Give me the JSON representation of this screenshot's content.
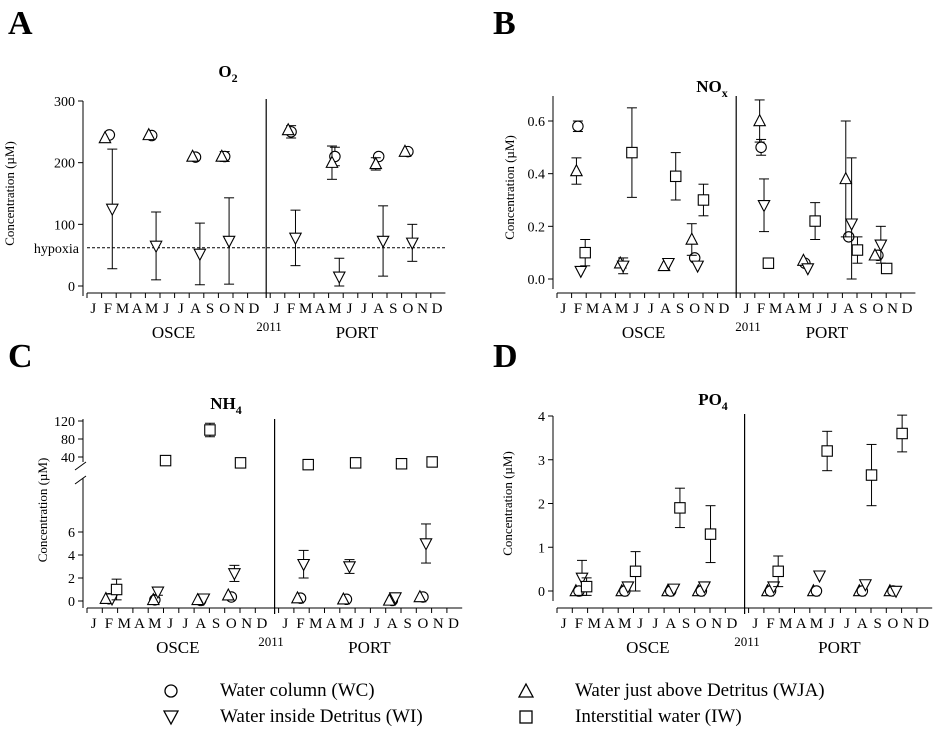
{
  "months": [
    "J",
    "F",
    "M",
    "A",
    "M",
    "J",
    "J",
    "A",
    "S",
    "O",
    "N",
    "D"
  ],
  "year_label": "2011",
  "site_labels": [
    "OSCE",
    "PORT"
  ],
  "legend": [
    {
      "marker": "circle",
      "label": "Water column (WC)"
    },
    {
      "marker": "triangle-up",
      "label": "Water just above Detritus (WJA)"
    },
    {
      "marker": "triangle-down",
      "label": "Water inside Detritus (WI)"
    },
    {
      "marker": "square",
      "label": "Interstitial water (IW)"
    }
  ],
  "chart_data": [
    {
      "type": "scatter",
      "panel_letter": "A",
      "title_base": "O",
      "title_sub": "2",
      "ylabel": "Concentration (µM)",
      "ylim": [
        0,
        300
      ],
      "yticks": [
        0,
        100,
        200,
        300
      ],
      "reference_line": {
        "value": 62,
        "label": "hypoxia"
      },
      "series": [
        {
          "marker": "circle",
          "points": [
            {
              "site": "OSCE",
              "month": 2.1,
              "y": 245
            },
            {
              "site": "OSCE",
              "month": 5.0,
              "y": 244
            },
            {
              "site": "OSCE",
              "month": 8.0,
              "y": 209
            },
            {
              "site": "OSCE",
              "month": 10.0,
              "y": 210,
              "err": 8
            },
            {
              "site": "PORT",
              "month": 2.0,
              "y": 250,
              "err": 10
            },
            {
              "site": "PORT",
              "month": 5.0,
              "y": 210,
              "err": 15
            },
            {
              "site": "PORT",
              "month": 8.0,
              "y": 210
            },
            {
              "site": "PORT",
              "month": 10.0,
              "y": 218
            }
          ]
        },
        {
          "marker": "triangle-up",
          "points": [
            {
              "site": "OSCE",
              "month": 1.8,
              "y": 240
            },
            {
              "site": "OSCE",
              "month": 4.8,
              "y": 245
            },
            {
              "site": "OSCE",
              "month": 7.8,
              "y": 210
            },
            {
              "site": "OSCE",
              "month": 9.8,
              "y": 210
            },
            {
              "site": "PORT",
              "month": 1.8,
              "y": 253
            },
            {
              "site": "PORT",
              "month": 4.8,
              "y": 200,
              "err": 27
            },
            {
              "site": "PORT",
              "month": 7.8,
              "y": 198,
              "err": 10
            },
            {
              "site": "PORT",
              "month": 9.8,
              "y": 218
            }
          ]
        },
        {
          "marker": "triangle-down",
          "points": [
            {
              "site": "OSCE",
              "month": 2.3,
              "y": 125,
              "err": 97
            },
            {
              "site": "OSCE",
              "month": 5.3,
              "y": 65,
              "err": 55
            },
            {
              "site": "OSCE",
              "month": 8.3,
              "y": 52,
              "err": 50
            },
            {
              "site": "OSCE",
              "month": 10.3,
              "y": 73,
              "err": 70
            },
            {
              "site": "PORT",
              "month": 2.3,
              "y": 78,
              "err": 45
            },
            {
              "site": "PORT",
              "month": 5.3,
              "y": 15,
              "err": 30
            },
            {
              "site": "PORT",
              "month": 8.3,
              "y": 73,
              "err": 57
            },
            {
              "site": "PORT",
              "month": 10.3,
              "y": 70,
              "err": 30
            }
          ]
        }
      ]
    },
    {
      "type": "scatter",
      "panel_letter": "B",
      "title_base": "NO",
      "title_sub": "x",
      "ylabel": "Concentration (µM)",
      "ylim": [
        0,
        0.7
      ],
      "yticks": [
        0.0,
        0.2,
        0.4,
        0.6
      ],
      "series": [
        {
          "marker": "circle",
          "points": [
            {
              "site": "OSCE",
              "month": 2.0,
              "y": 0.58,
              "err": 0.02
            },
            {
              "site": "OSCE",
              "month": 10.0,
              "y": 0.08
            },
            {
              "site": "PORT",
              "month": 2.0,
              "y": 0.5,
              "err": 0.03
            },
            {
              "site": "PORT",
              "month": 5.0,
              "y": 0.06
            },
            {
              "site": "PORT",
              "month": 8.0,
              "y": 0.16
            },
            {
              "site": "PORT",
              "month": 10.0,
              "y": 0.09
            }
          ]
        },
        {
          "marker": "triangle-up",
          "points": [
            {
              "site": "OSCE",
              "month": 1.9,
              "y": 0.41,
              "err": 0.05
            },
            {
              "site": "OSCE",
              "month": 4.9,
              "y": 0.06
            },
            {
              "site": "OSCE",
              "month": 7.9,
              "y": 0.05
            },
            {
              "site": "OSCE",
              "month": 9.8,
              "y": 0.15,
              "err": 0.06
            },
            {
              "site": "PORT",
              "month": 1.9,
              "y": 0.6,
              "err": 0.08
            },
            {
              "site": "PORT",
              "month": 4.9,
              "y": 0.07
            },
            {
              "site": "PORT",
              "month": 7.8,
              "y": 0.38,
              "err": 0.22
            },
            {
              "site": "PORT",
              "month": 9.8,
              "y": 0.09
            }
          ]
        },
        {
          "marker": "triangle-down",
          "points": [
            {
              "site": "OSCE",
              "month": 2.2,
              "y": 0.03
            },
            {
              "site": "OSCE",
              "month": 5.1,
              "y": 0.05,
              "err": 0.03
            },
            {
              "site": "OSCE",
              "month": 8.2,
              "y": 0.06
            },
            {
              "site": "OSCE",
              "month": 10.2,
              "y": 0.05
            },
            {
              "site": "PORT",
              "month": 2.2,
              "y": 0.28,
              "err": 0.1
            },
            {
              "site": "PORT",
              "month": 5.2,
              "y": 0.04
            },
            {
              "site": "PORT",
              "month": 8.2,
              "y": 0.21,
              "err": 0.25
            },
            {
              "site": "PORT",
              "month": 10.2,
              "y": 0.13,
              "err": 0.07
            }
          ]
        },
        {
          "marker": "square",
          "points": [
            {
              "site": "OSCE",
              "month": 2.5,
              "y": 0.1,
              "err": 0.05
            },
            {
              "site": "OSCE",
              "month": 5.7,
              "y": 0.48,
              "err": 0.17
            },
            {
              "site": "OSCE",
              "month": 8.7,
              "y": 0.39,
              "err": 0.09
            },
            {
              "site": "OSCE",
              "month": 10.6,
              "y": 0.3,
              "err": 0.06
            },
            {
              "site": "PORT",
              "month": 2.5,
              "y": 0.06
            },
            {
              "site": "PORT",
              "month": 5.7,
              "y": 0.22,
              "err": 0.07
            },
            {
              "site": "PORT",
              "month": 8.6,
              "y": 0.11,
              "err": 0.05
            },
            {
              "site": "PORT",
              "month": 10.6,
              "y": 0.04
            }
          ]
        }
      ]
    },
    {
      "type": "scatter",
      "panel_letter": "C",
      "title_base": "NH",
      "title_sub": "4",
      "ylabel": "Concentration (µM)",
      "axis_break": {
        "lower_max": 7.5,
        "upper_min": 20
      },
      "yticks_lower": [
        0,
        2,
        4,
        6
      ],
      "yticks_upper": [
        40,
        80,
        120
      ],
      "series": [
        {
          "marker": "circle",
          "points": [
            {
              "site": "OSCE",
              "month": 2.0,
              "y": 0.2
            },
            {
              "site": "OSCE",
              "month": 5.0,
              "y": 0.1
            },
            {
              "site": "OSCE",
              "month": 8.0,
              "y": 0.05
            },
            {
              "site": "OSCE",
              "month": 10.0,
              "y": 0.35
            },
            {
              "site": "PORT",
              "month": 2.0,
              "y": 0.25
            },
            {
              "site": "PORT",
              "month": 5.0,
              "y": 0.15
            },
            {
              "site": "PORT",
              "month": 8.0,
              "y": 0.05
            },
            {
              "site": "PORT",
              "month": 10.0,
              "y": 0.35
            }
          ]
        },
        {
          "marker": "triangle-up",
          "points": [
            {
              "site": "OSCE",
              "month": 1.8,
              "y": 0.2
            },
            {
              "site": "OSCE",
              "month": 4.9,
              "y": 0.1
            },
            {
              "site": "OSCE",
              "month": 7.8,
              "y": 0.1
            },
            {
              "site": "OSCE",
              "month": 9.8,
              "y": 0.5
            },
            {
              "site": "PORT",
              "month": 1.8,
              "y": 0.25
            },
            {
              "site": "PORT",
              "month": 4.8,
              "y": 0.15
            },
            {
              "site": "PORT",
              "month": 7.8,
              "y": 0.05
            },
            {
              "site": "PORT",
              "month": 9.8,
              "y": 0.35
            }
          ]
        },
        {
          "marker": "triangle-down",
          "points": [
            {
              "site": "OSCE",
              "month": 2.2,
              "y": 0.2
            },
            {
              "site": "OSCE",
              "month": 5.2,
              "y": 0.8,
              "err": 0.3
            },
            {
              "site": "OSCE",
              "month": 8.2,
              "y": 0.2
            },
            {
              "site": "OSCE",
              "month": 10.2,
              "y": 2.4,
              "err": 0.7
            },
            {
              "site": "PORT",
              "month": 2.2,
              "y": 3.2,
              "err": 1.2
            },
            {
              "site": "PORT",
              "month": 5.2,
              "y": 3.0,
              "err": 0.6
            },
            {
              "site": "PORT",
              "month": 8.2,
              "y": 0.3
            },
            {
              "site": "PORT",
              "month": 10.2,
              "y": 5.0,
              "err": 1.7
            }
          ]
        },
        {
          "marker": "square",
          "points": [
            {
              "site": "OSCE",
              "month": 2.5,
              "y": 1.0,
              "err": 0.9
            },
            {
              "site": "OSCE",
              "month": 5.7,
              "y": 32,
              "err": 6
            },
            {
              "site": "OSCE",
              "month": 8.6,
              "y": 100,
              "err": 15
            },
            {
              "site": "OSCE",
              "month": 10.6,
              "y": 27
            },
            {
              "site": "PORT",
              "month": 2.5,
              "y": 23
            },
            {
              "site": "PORT",
              "month": 5.6,
              "y": 27
            },
            {
              "site": "PORT",
              "month": 8.6,
              "y": 25
            },
            {
              "site": "PORT",
              "month": 10.6,
              "y": 29
            }
          ]
        }
      ]
    },
    {
      "type": "scatter",
      "panel_letter": "D",
      "title_base": "PO",
      "title_sub": "4",
      "ylabel": "Concentration (µM)",
      "ylim": [
        -0.3,
        4.2
      ],
      "yticks": [
        0,
        1,
        2,
        3,
        4
      ],
      "series": [
        {
          "marker": "triangle-up",
          "points": [
            {
              "site": "OSCE",
              "month": 1.8,
              "y": 0.0
            },
            {
              "site": "OSCE",
              "month": 4.8,
              "y": 0.0
            },
            {
              "site": "OSCE",
              "month": 7.8,
              "y": 0.0
            },
            {
              "site": "OSCE",
              "month": 9.8,
              "y": 0.0
            },
            {
              "site": "PORT",
              "month": 1.8,
              "y": 0.0
            },
            {
              "site": "PORT",
              "month": 4.8,
              "y": 0.0
            },
            {
              "site": "PORT",
              "month": 7.8,
              "y": 0.0
            },
            {
              "site": "PORT",
              "month": 9.8,
              "y": 0.0
            }
          ]
        },
        {
          "marker": "circle",
          "points": [
            {
              "site": "OSCE",
              "month": 2.0,
              "y": 0.0
            },
            {
              "site": "OSCE",
              "month": 5.0,
              "y": 0.0
            },
            {
              "site": "OSCE",
              "month": 8.0,
              "y": 0.0
            },
            {
              "site": "OSCE",
              "month": 10.0,
              "y": 0.0
            },
            {
              "site": "PORT",
              "month": 2.0,
              "y": 0.0
            },
            {
              "site": "PORT",
              "month": 5.0,
              "y": 0.0
            },
            {
              "site": "PORT",
              "month": 8.0,
              "y": 0.0
            },
            {
              "site": "PORT",
              "month": 10.0,
              "y": 0.0
            }
          ]
        },
        {
          "marker": "triangle-down",
          "points": [
            {
              "site": "OSCE",
              "month": 2.2,
              "y": 0.3,
              "err": 0.4
            },
            {
              "site": "OSCE",
              "month": 5.2,
              "y": 0.1
            },
            {
              "site": "OSCE",
              "month": 8.2,
              "y": 0.05
            },
            {
              "site": "OSCE",
              "month": 10.2,
              "y": 0.1
            },
            {
              "site": "PORT",
              "month": 2.2,
              "y": 0.1
            },
            {
              "site": "PORT",
              "month": 5.2,
              "y": 0.35
            },
            {
              "site": "PORT",
              "month": 8.2,
              "y": 0.15
            },
            {
              "site": "PORT",
              "month": 10.2,
              "y": 0.0
            }
          ]
        },
        {
          "marker": "square",
          "points": [
            {
              "site": "OSCE",
              "month": 2.5,
              "y": 0.1,
              "err": 0.2
            },
            {
              "site": "OSCE",
              "month": 5.7,
              "y": 0.45,
              "err": 0.45
            },
            {
              "site": "OSCE",
              "month": 8.6,
              "y": 1.9,
              "err": 0.45
            },
            {
              "site": "OSCE",
              "month": 10.6,
              "y": 1.3,
              "err": 0.65
            },
            {
              "site": "PORT",
              "month": 2.5,
              "y": 0.45,
              "err": 0.35
            },
            {
              "site": "PORT",
              "month": 5.7,
              "y": 3.2,
              "err": 0.45
            },
            {
              "site": "PORT",
              "month": 8.6,
              "y": 2.65,
              "err": 0.7
            },
            {
              "site": "PORT",
              "month": 10.6,
              "y": 3.6,
              "err": 0.42
            }
          ]
        }
      ]
    }
  ]
}
